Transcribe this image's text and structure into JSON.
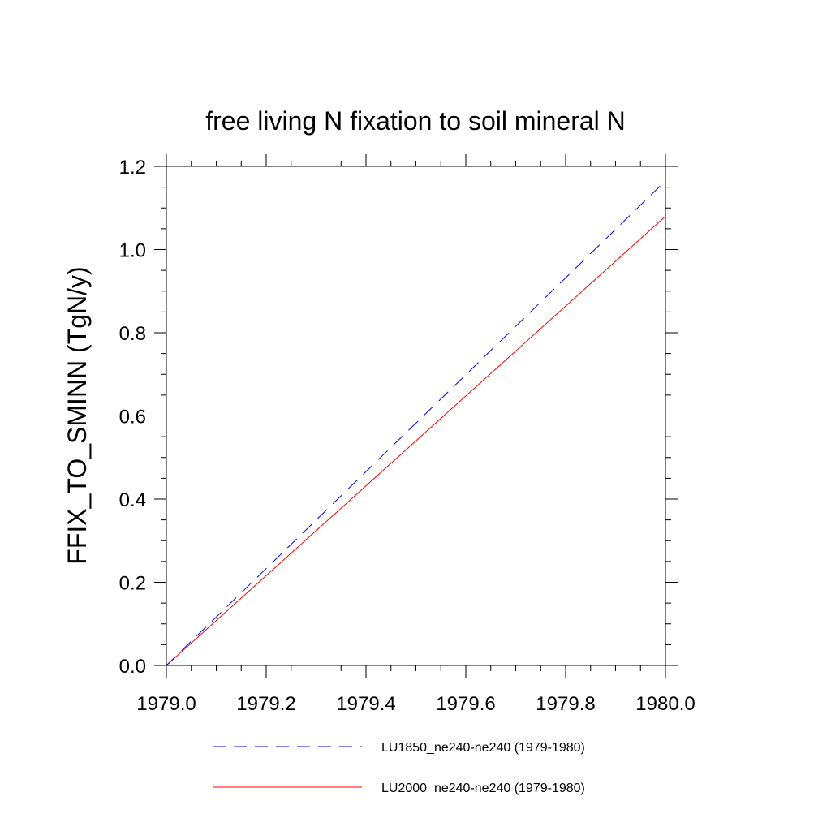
{
  "chart_data": {
    "type": "line",
    "title": "free living N fixation to soil mineral N",
    "xlabel": "",
    "ylabel": "FFIX_TO_SMINN  (TgN/y)",
    "xlim": [
      1979.0,
      1980.0
    ],
    "ylim": [
      0.0,
      1.2
    ],
    "x_ticks": [
      "1979.0",
      "1979.2",
      "1979.4",
      "1979.6",
      "1979.8",
      "1980.0"
    ],
    "y_ticks": [
      "0.0",
      "0.2",
      "0.4",
      "0.6",
      "0.8",
      "1.0",
      "1.2"
    ],
    "grid": false,
    "legend_position": "bottom",
    "series": [
      {
        "name": "LU1850_ne240-ne240 (1979-1980)",
        "color": "#0000ff",
        "style": "dashed",
        "x": [
          1979.0,
          1980.0
        ],
        "y": [
          0.0,
          1.165
        ]
      },
      {
        "name": "LU2000_ne240-ne240 (1979-1980)",
        "color": "#ff0000",
        "style": "solid",
        "x": [
          1979.0,
          1980.0
        ],
        "y": [
          0.0,
          1.08
        ]
      }
    ]
  }
}
